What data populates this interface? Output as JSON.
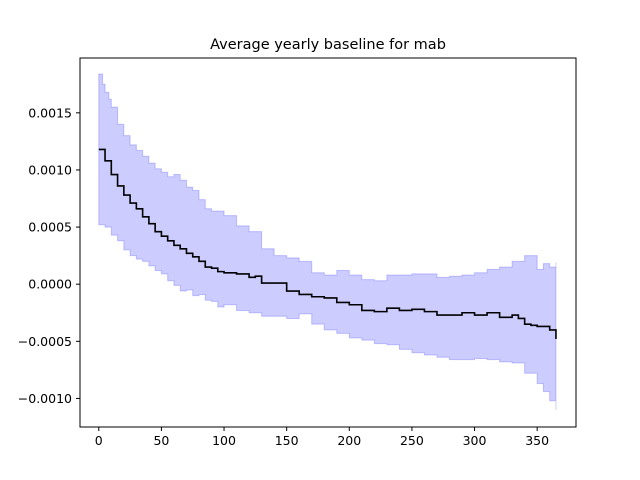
{
  "chart_data": {
    "type": "line",
    "title": "Average yearly baseline for mab",
    "xlabel": "",
    "ylabel": "",
    "xlim": [
      -15,
      381
    ],
    "ylim": [
      -0.00125,
      0.00198
    ],
    "x_ticks": [
      0,
      50,
      100,
      150,
      200,
      250,
      300,
      350
    ],
    "y_ticks": [
      -0.001,
      -0.0005,
      0.0,
      0.0005,
      0.001,
      0.0015
    ],
    "y_tick_labels": [
      "−0.0010",
      "−0.0005",
      "0.0000",
      "0.0005",
      "0.0010",
      "0.0015"
    ],
    "grid": false,
    "legend": "none",
    "series": [
      {
        "kind": "mean_line",
        "color": "#000000",
        "x": [
          0,
          5,
          10,
          15,
          20,
          25,
          30,
          35,
          40,
          45,
          50,
          55,
          60,
          65,
          70,
          75,
          80,
          85,
          90,
          95,
          100,
          110,
          120,
          125,
          130,
          140,
          150,
          160,
          170,
          180,
          190,
          200,
          210,
          220,
          230,
          240,
          250,
          260,
          270,
          280,
          290,
          300,
          310,
          320,
          330,
          335,
          340,
          345,
          350,
          355,
          360,
          365
        ],
        "y": [
          0.00118,
          0.00108,
          0.00096,
          0.00086,
          0.00078,
          0.00071,
          0.00066,
          0.00059,
          0.00053,
          0.00046,
          0.00042,
          0.00038,
          0.00034,
          0.00031,
          0.00027,
          0.00024,
          0.0002,
          0.00015,
          0.00014,
          0.00011,
          0.0001,
          9e-05,
          6e-05,
          7e-05,
          1e-05,
          1e-05,
          -6e-05,
          -9e-05,
          -0.00011,
          -0.00012,
          -0.00016,
          -0.00018,
          -0.00023,
          -0.00024,
          -0.00021,
          -0.00023,
          -0.00022,
          -0.00024,
          -0.00027,
          -0.00027,
          -0.00025,
          -0.00027,
          -0.00025,
          -0.00029,
          -0.00027,
          -0.0003,
          -0.00035,
          -0.00036,
          -0.00037,
          -0.00037,
          -0.0004,
          -0.00048
        ]
      },
      {
        "kind": "band_upper",
        "color": "#0000ff",
        "x": [
          0,
          3,
          5,
          8,
          10,
          15,
          20,
          25,
          30,
          35,
          40,
          45,
          50,
          55,
          60,
          65,
          70,
          75,
          80,
          85,
          90,
          100,
          110,
          120,
          130,
          140,
          150,
          160,
          170,
          180,
          190,
          200,
          210,
          220,
          230,
          240,
          250,
          260,
          270,
          280,
          290,
          300,
          310,
          320,
          330,
          340,
          350,
          355,
          360,
          365
        ],
        "y": [
          0.00184,
          0.00175,
          0.00168,
          0.00162,
          0.00155,
          0.0014,
          0.0013,
          0.00122,
          0.00117,
          0.00112,
          0.00106,
          0.00101,
          0.00098,
          0.00094,
          0.00096,
          0.00091,
          0.00085,
          0.00082,
          0.00074,
          0.00066,
          0.00064,
          0.0006,
          0.00051,
          0.00046,
          0.00031,
          0.00025,
          0.00023,
          0.0002,
          0.0001,
          8e-05,
          0.00012,
          8e-05,
          4e-05,
          3e-05,
          8e-05,
          8e-05,
          9e-05,
          9e-05,
          6e-05,
          7e-05,
          8e-05,
          0.0001,
          0.00013,
          0.00015,
          0.0002,
          0.00025,
          0.00013,
          0.00018,
          0.00015,
          0.00019
        ]
      },
      {
        "kind": "band_lower",
        "color": "#0000ff",
        "x": [
          0,
          5,
          10,
          15,
          20,
          25,
          30,
          35,
          40,
          45,
          50,
          55,
          60,
          65,
          70,
          75,
          80,
          85,
          90,
          95,
          100,
          110,
          120,
          130,
          140,
          150,
          160,
          170,
          180,
          190,
          200,
          210,
          220,
          230,
          240,
          250,
          260,
          270,
          280,
          290,
          300,
          310,
          320,
          330,
          340,
          350,
          355,
          360,
          365
        ],
        "y": [
          0.00052,
          0.0005,
          0.00043,
          0.00038,
          0.0003,
          0.00025,
          0.00022,
          0.0002,
          0.00016,
          0.00012,
          9e-05,
          3e-05,
          -1e-05,
          -6e-05,
          -5e-05,
          -0.0001,
          -9e-05,
          -0.00014,
          -0.00015,
          -0.0002,
          -0.00018,
          -0.00023,
          -0.00025,
          -0.00028,
          -0.00028,
          -0.0003,
          -0.00026,
          -0.00035,
          -0.0004,
          -0.00043,
          -0.00047,
          -0.00049,
          -0.00052,
          -0.00053,
          -0.00057,
          -0.0006,
          -0.00062,
          -0.00064,
          -0.00066,
          -0.00066,
          -0.00065,
          -0.00066,
          -0.00068,
          -0.00069,
          -0.00078,
          -0.00087,
          -0.00094,
          -0.00102,
          -0.0011
        ]
      }
    ],
    "band_opacity": 0.2
  }
}
